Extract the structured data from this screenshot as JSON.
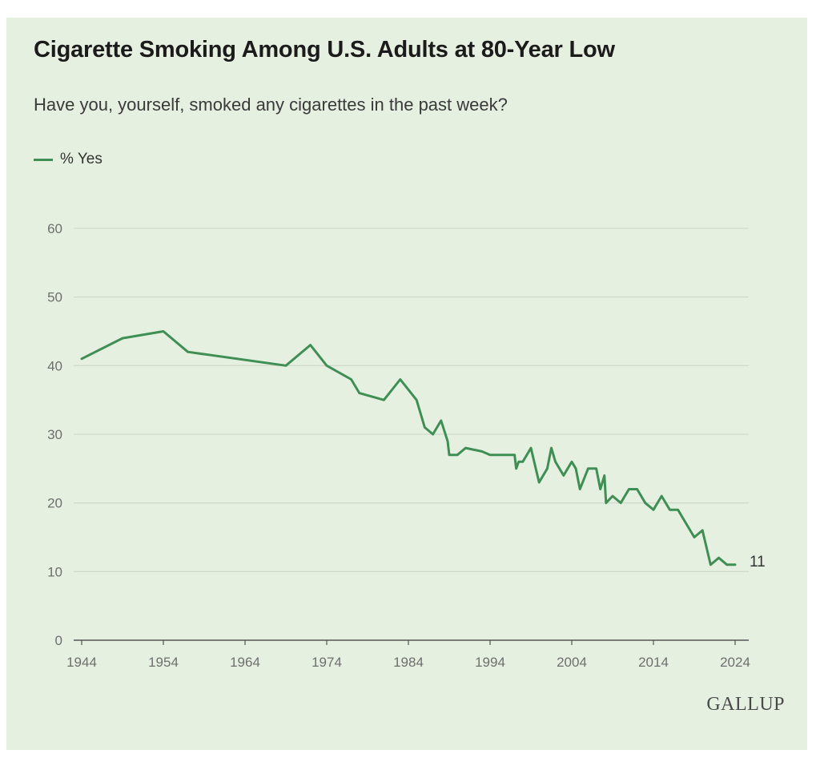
{
  "brand": {
    "logo_text": "GALLUP",
    "line_color": "#3f8f55",
    "background": "#e6f0e1"
  },
  "chart_data": {
    "type": "line",
    "title": "Cigarette Smoking Among U.S. Adults at 80-Year Low",
    "subtitle": "Have you, yourself, smoked any cigarettes in the past week?",
    "xlabel": "",
    "ylabel": "",
    "xlim": [
      1944,
      2024
    ],
    "ylim": [
      0,
      60
    ],
    "x_ticks": [
      "1944",
      "1954",
      "1964",
      "1974",
      "1984",
      "1994",
      "2004",
      "2014",
      "2024"
    ],
    "y_ticks": [
      "0",
      "10",
      "20",
      "30",
      "40",
      "50",
      "60"
    ],
    "grid": "horizontal",
    "legend_position": "top-left",
    "end_label": "11",
    "series": [
      {
        "name": "% Yes",
        "color": "#3f8f55",
        "x": [
          1944,
          1949,
          1954,
          1957,
          1969,
          1972,
          1974,
          1977,
          1978,
          1981,
          1983,
          1985,
          1986,
          1987,
          1988,
          1988.8,
          1989,
          1990,
          1991,
          1993,
          1994,
          1996,
          1997,
          1997.2,
          1997.5,
          1998,
          1999,
          2000,
          2001,
          2001.5,
          2002,
          2003,
          2003.5,
          2004,
          2004.5,
          2005,
          2006,
          2007,
          2007.5,
          2008,
          2008.2,
          2009,
          2010,
          2011,
          2012,
          2013,
          2014,
          2015,
          2016,
          2017,
          2018,
          2019,
          2020,
          2021,
          2022,
          2023,
          2024
        ],
        "y": [
          41,
          44,
          45,
          42,
          40,
          43,
          40,
          38,
          36,
          35,
          38,
          35,
          31,
          30,
          32,
          29,
          27,
          27,
          28,
          27.5,
          27,
          27,
          27,
          25,
          26,
          26,
          28,
          23,
          25,
          28,
          26,
          24,
          25,
          26,
          25,
          22,
          25,
          25,
          22,
          24,
          20,
          21,
          20,
          22,
          22,
          20,
          19,
          21,
          19,
          19,
          17,
          15,
          16,
          11,
          12,
          11,
          11
        ]
      }
    ]
  }
}
